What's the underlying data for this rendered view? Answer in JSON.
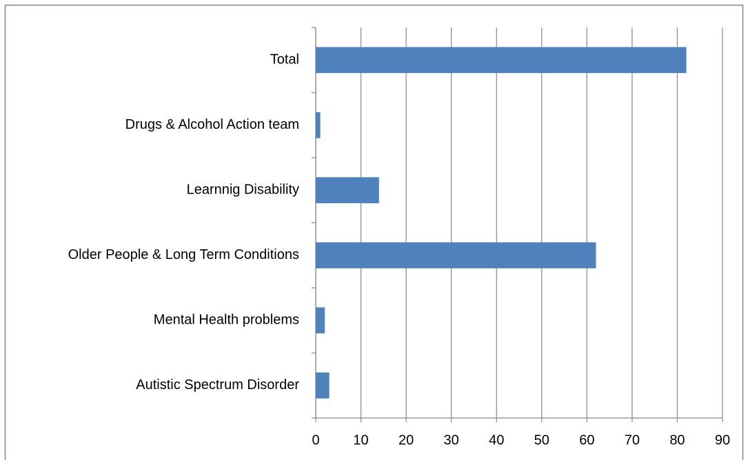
{
  "chart_data": {
    "type": "bar",
    "orientation": "horizontal",
    "categories": [
      "Total",
      "Drugs & Alcohol Action team",
      "Learnnig Disability",
      "Older People & Long Term Conditions",
      "Mental Health problems",
      "Autistic Spectrum Disorder"
    ],
    "values": [
      82,
      1,
      14,
      62,
      2,
      3
    ],
    "color": "#4f81bd",
    "xlim": [
      0,
      90
    ],
    "xticks": [
      0,
      10,
      20,
      30,
      40,
      50,
      60,
      70,
      80,
      90
    ],
    "grid": true
  }
}
